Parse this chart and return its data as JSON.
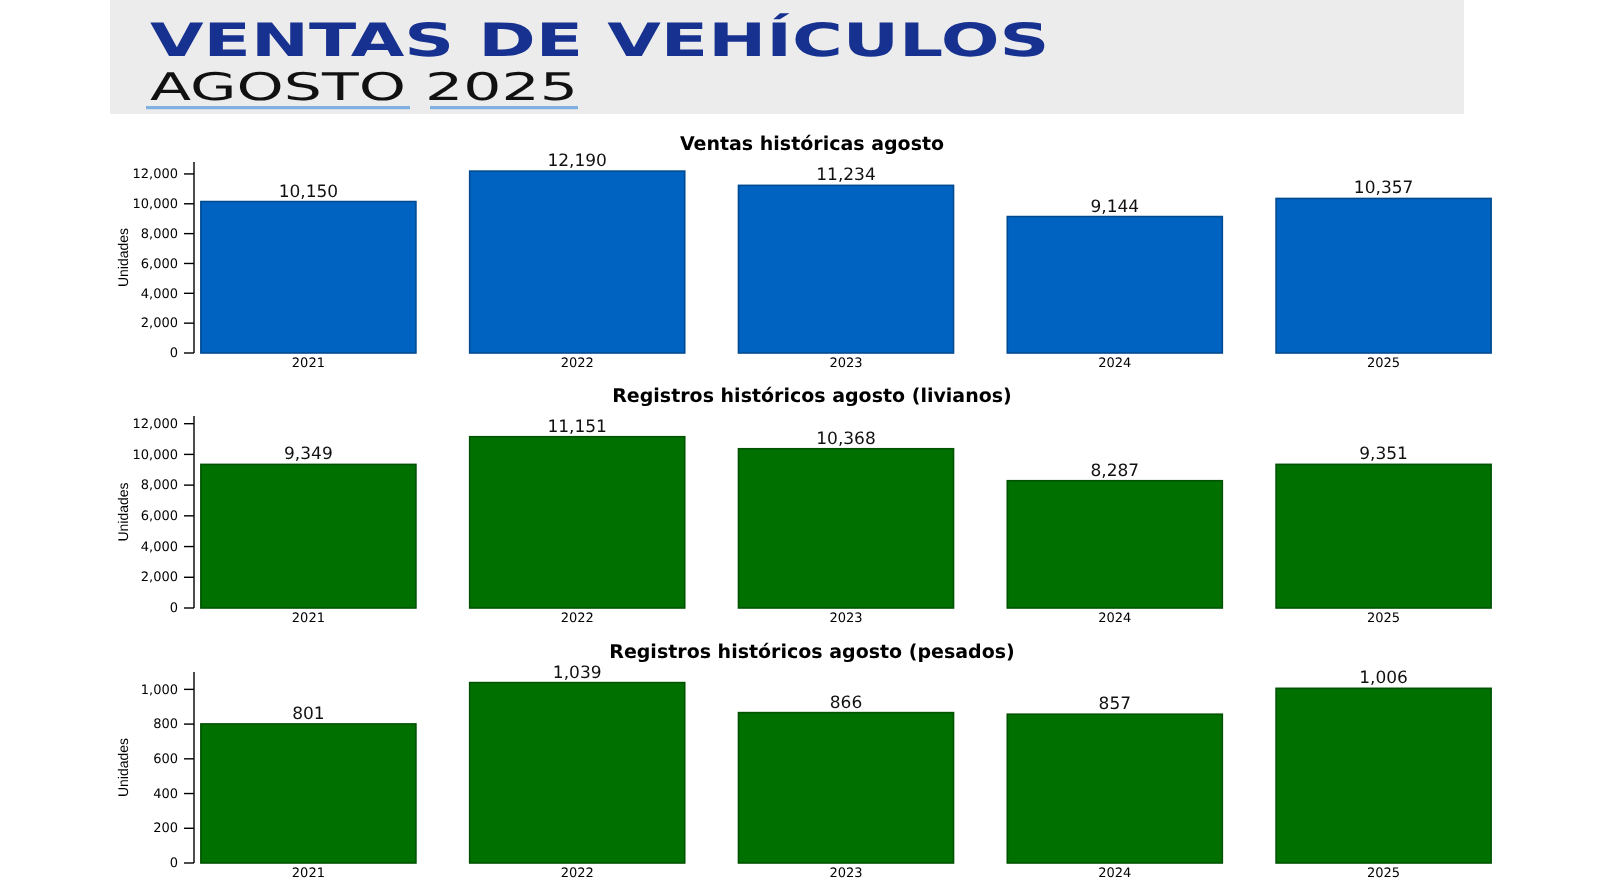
{
  "chart_data": [
    {
      "type": "other",
      "title": "VENTAS DE VEHÍCULOS",
      "subtitle": "AGOSTO 2025"
    },
    {
      "type": "bar",
      "title": "Ventas históricas agosto",
      "ylabel": "Unidades",
      "categories": [
        "2021",
        "2022",
        "2023",
        "2024",
        "2025"
      ],
      "values": [
        10150,
        12190,
        11234,
        9144,
        10357
      ],
      "value_labels": [
        "10,150",
        "12,190",
        "11,234",
        "9,144",
        "10,357"
      ],
      "color": "#0063c1",
      "ylim": [
        0,
        12800
      ],
      "yticks": [
        0,
        {
          "value": 2000,
          "label": "2,000"
        },
        {
          "value": 4000,
          "label": "4,000"
        },
        {
          "value": 6000,
          "label": "6,000"
        },
        {
          "value": 8000,
          "label": "8,000"
        },
        {
          "value": 10000,
          "label": "10,000"
        },
        {
          "value": 12000,
          "label": "12,000"
        }
      ]
    },
    {
      "type": "bar",
      "title": "Registros históricos agosto (livianos)",
      "ylabel": "Unidades",
      "categories": [
        "2021",
        "2022",
        "2023",
        "2024",
        "2025"
      ],
      "values": [
        9349,
        11151,
        10368,
        8287,
        9351
      ],
      "value_labels": [
        "9,349",
        "11,151",
        "10,368",
        "8,287",
        "9,351"
      ],
      "color": "#007000",
      "ylim": [
        0,
        12500
      ],
      "yticks": [
        0,
        {
          "value": 2000,
          "label": "2,000"
        },
        {
          "value": 4000,
          "label": "4,000"
        },
        {
          "value": 6000,
          "label": "6,000"
        },
        {
          "value": 8000,
          "label": "8,000"
        },
        {
          "value": 10000,
          "label": "10,000"
        },
        {
          "value": 12000,
          "label": "12,000"
        }
      ]
    },
    {
      "type": "bar",
      "title": "Registros históricos agosto (pesados)",
      "ylabel": "Unidades",
      "categories": [
        "2021",
        "2022",
        "2023",
        "2024",
        "2025"
      ],
      "values": [
        801,
        1039,
        866,
        857,
        1006
      ],
      "value_labels": [
        "801",
        "1,039",
        "866",
        "857",
        "1,006"
      ],
      "color": "#007000",
      "ylim": [
        0,
        1100
      ],
      "yticks": [
        0,
        200,
        400,
        600,
        800,
        {
          "value": 1000,
          "label": "1,000"
        }
      ]
    }
  ]
}
